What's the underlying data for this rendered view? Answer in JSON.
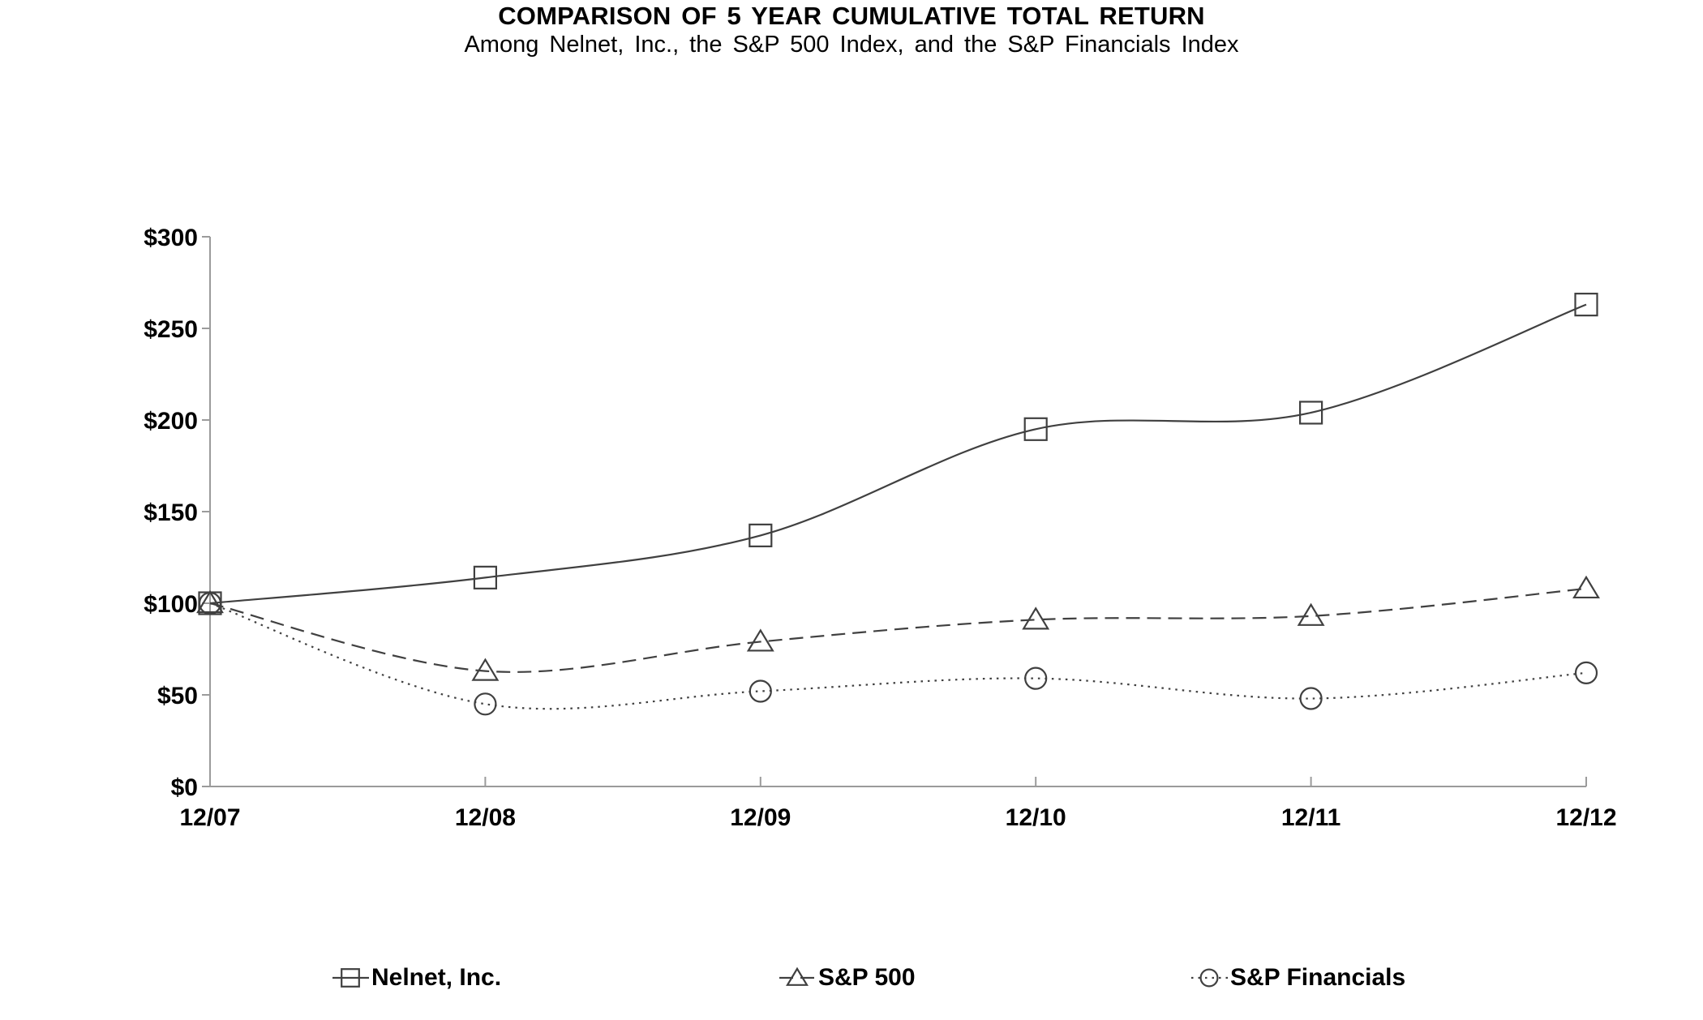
{
  "chart_data": {
    "type": "line",
    "title": "COMPARISON OF 5 YEAR CUMULATIVE TOTAL RETURN",
    "subtitle": "Among Nelnet, Inc., the S&P 500 Index, and the S&P Financials Index",
    "x_categories": [
      "12/07",
      "12/08",
      "12/09",
      "12/10",
      "12/11",
      "12/12"
    ],
    "series": [
      {
        "name": "Nelnet, Inc.",
        "marker": "square",
        "line_style": "solid",
        "values": [
          100,
          114,
          137,
          195,
          204,
          263
        ]
      },
      {
        "name": "S&P 500",
        "marker": "triangle",
        "line_style": "dashed",
        "values": [
          100,
          63,
          79,
          91,
          93,
          108
        ]
      },
      {
        "name": "S&P Financials",
        "marker": "circle",
        "line_style": "dotted",
        "values": [
          100,
          45,
          52,
          59,
          48,
          62
        ]
      }
    ],
    "y_tick_labels": [
      "$0",
      "$50",
      "$100",
      "$150",
      "$200",
      "$250",
      "$300"
    ],
    "y_tick_values": [
      0,
      50,
      100,
      150,
      200,
      250,
      300
    ],
    "ylim": [
      0,
      300
    ],
    "xlabel": "",
    "ylabel": "",
    "grid": false,
    "smoothed_lines": true,
    "legend_position": "bottom",
    "colors": {
      "series_stroke": "#404040",
      "axis": "#9b9b9b",
      "text": "#000000",
      "background": "#ffffff"
    }
  }
}
